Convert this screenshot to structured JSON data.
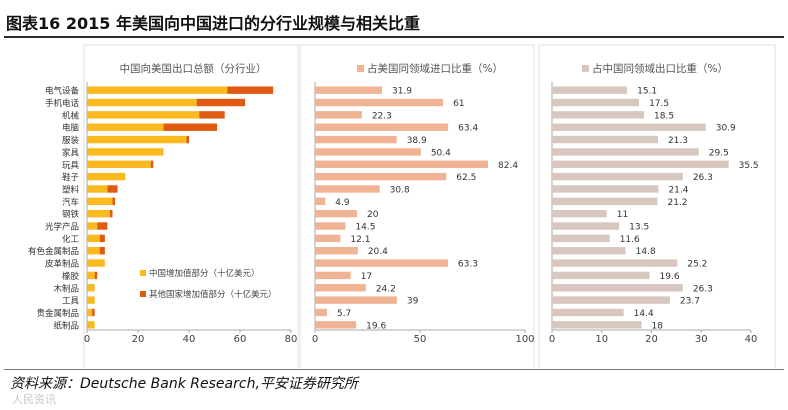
{
  "figure": {
    "title": "图表16    2015 年美国向中国进口的分行业规模与相关比重",
    "source": "资料来源：Deutsche Bank Research,平安证券研究所",
    "watermark": "人民资讯"
  },
  "colors": {
    "cn_bar": "#FAB91E",
    "other_bar": "#E05A12",
    "us_share_bar": "#F0B393",
    "cn_share_bar": "#D7C7BE",
    "axis": "#AAAAAA",
    "text": "#404040"
  },
  "chart_data": [
    {
      "type": "bar",
      "orientation": "horizontal",
      "stacked": true,
      "title": "中国向美国出口总额（分行业）",
      "categories": [
        "电气设备",
        "手机电话",
        "机械",
        "电脑",
        "服装",
        "家具",
        "玩具",
        "鞋子",
        "塑料",
        "汽车",
        "钢铁",
        "光学产品",
        "化工",
        "有色金属制品",
        "皮革制品",
        "橡胶",
        "木制品",
        "工具",
        "贵金属制品",
        "纸制品"
      ],
      "series": [
        {
          "name": "中国增加值部分（十亿美元）",
          "values": [
            55,
            43,
            44,
            30,
            39,
            30,
            25,
            15,
            8,
            10,
            9,
            4,
            5,
            5,
            7,
            3,
            3,
            3,
            2,
            3
          ]
        },
        {
          "name": "其他国家增加值部分（十亿美元）",
          "values": [
            18,
            19,
            10,
            21,
            1,
            0,
            1,
            0,
            4,
            1,
            1,
            4,
            2,
            2,
            0,
            1,
            0,
            0,
            1,
            0
          ]
        }
      ],
      "xlim": [
        0,
        80
      ],
      "xticks": [
        0,
        20,
        40,
        60,
        80
      ],
      "legend_position": "bottom-right"
    },
    {
      "type": "bar",
      "orientation": "horizontal",
      "title": "占美国同领域进口比重（%）",
      "legend_label": "占美国同领域进口比重（%）",
      "categories": [
        "电气设备",
        "手机电话",
        "机械",
        "电脑",
        "服装",
        "家具",
        "玩具",
        "鞋子",
        "塑料",
        "汽车",
        "钢铁",
        "光学产品",
        "化工",
        "有色金属制品",
        "皮革制品",
        "橡胶",
        "木制品",
        "工具",
        "贵金属制品",
        "纸制品"
      ],
      "values": [
        31.9,
        61,
        22.3,
        63.4,
        38.9,
        50.4,
        82.4,
        62.5,
        30.8,
        4.9,
        20,
        14.5,
        12.1,
        20.4,
        63.3,
        17,
        24.2,
        39,
        5.7,
        19.6
      ],
      "xlim": [
        0,
        100
      ],
      "xticks": [
        0,
        50,
        100
      ]
    },
    {
      "type": "bar",
      "orientation": "horizontal",
      "title": "占中国同领域出口比重（%）",
      "legend_label": "占中国同领域出口比重（%）",
      "categories": [
        "电气设备",
        "手机电话",
        "机械",
        "电脑",
        "服装",
        "家具",
        "玩具",
        "鞋子",
        "塑料",
        "汽车",
        "钢铁",
        "光学产品",
        "化工",
        "有色金属制品",
        "皮革制品",
        "橡胶",
        "木制品",
        "工具",
        "贵金属制品",
        "纸制品"
      ],
      "values": [
        15.1,
        17.5,
        18.5,
        30.9,
        21.3,
        29.5,
        35.5,
        26.3,
        21.4,
        21.2,
        11,
        13.5,
        11.6,
        14.8,
        25.2,
        19.6,
        26.3,
        23.7,
        14.4,
        18
      ],
      "xlim": [
        0,
        40
      ],
      "xticks": [
        0,
        10,
        20,
        30,
        40
      ]
    }
  ]
}
